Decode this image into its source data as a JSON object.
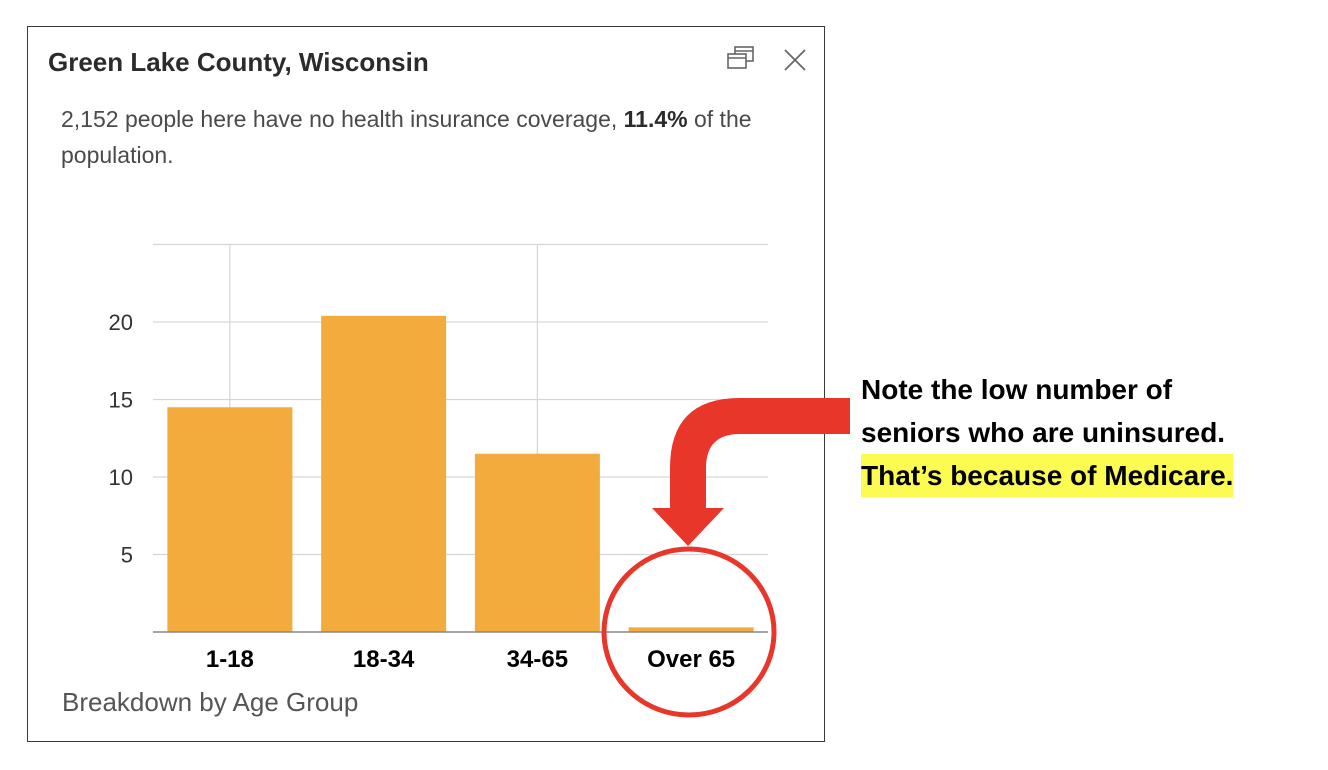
{
  "popup": {
    "title": "Green Lake County, Wisconsin",
    "description_pre": "2,152 people here have no health insurance coverage,",
    "description_bold": "11.4%",
    "description_post": "of the population.",
    "caption": "Breakdown by Age Group",
    "dock_icon": "dock-window-icon",
    "close_icon": "close-icon"
  },
  "chart_data": {
    "type": "bar",
    "categories": [
      "1-18",
      "18-34",
      "34-65",
      "Over 65"
    ],
    "values": [
      14.5,
      20.4,
      11.5,
      0.3
    ],
    "title": "",
    "xlabel": "",
    "ylabel": "",
    "ylim": [
      0,
      25
    ],
    "yticks": [
      5,
      10,
      15,
      20
    ],
    "grid": true,
    "bar_color": "#f3ab3e"
  },
  "annotation": {
    "line1": "Note the low number of",
    "line2": "seniors who are uninsured.",
    "line3": "That’s because of Medicare.",
    "arrow_color": "#e8362b",
    "highlight_color": "#fbfb52"
  }
}
